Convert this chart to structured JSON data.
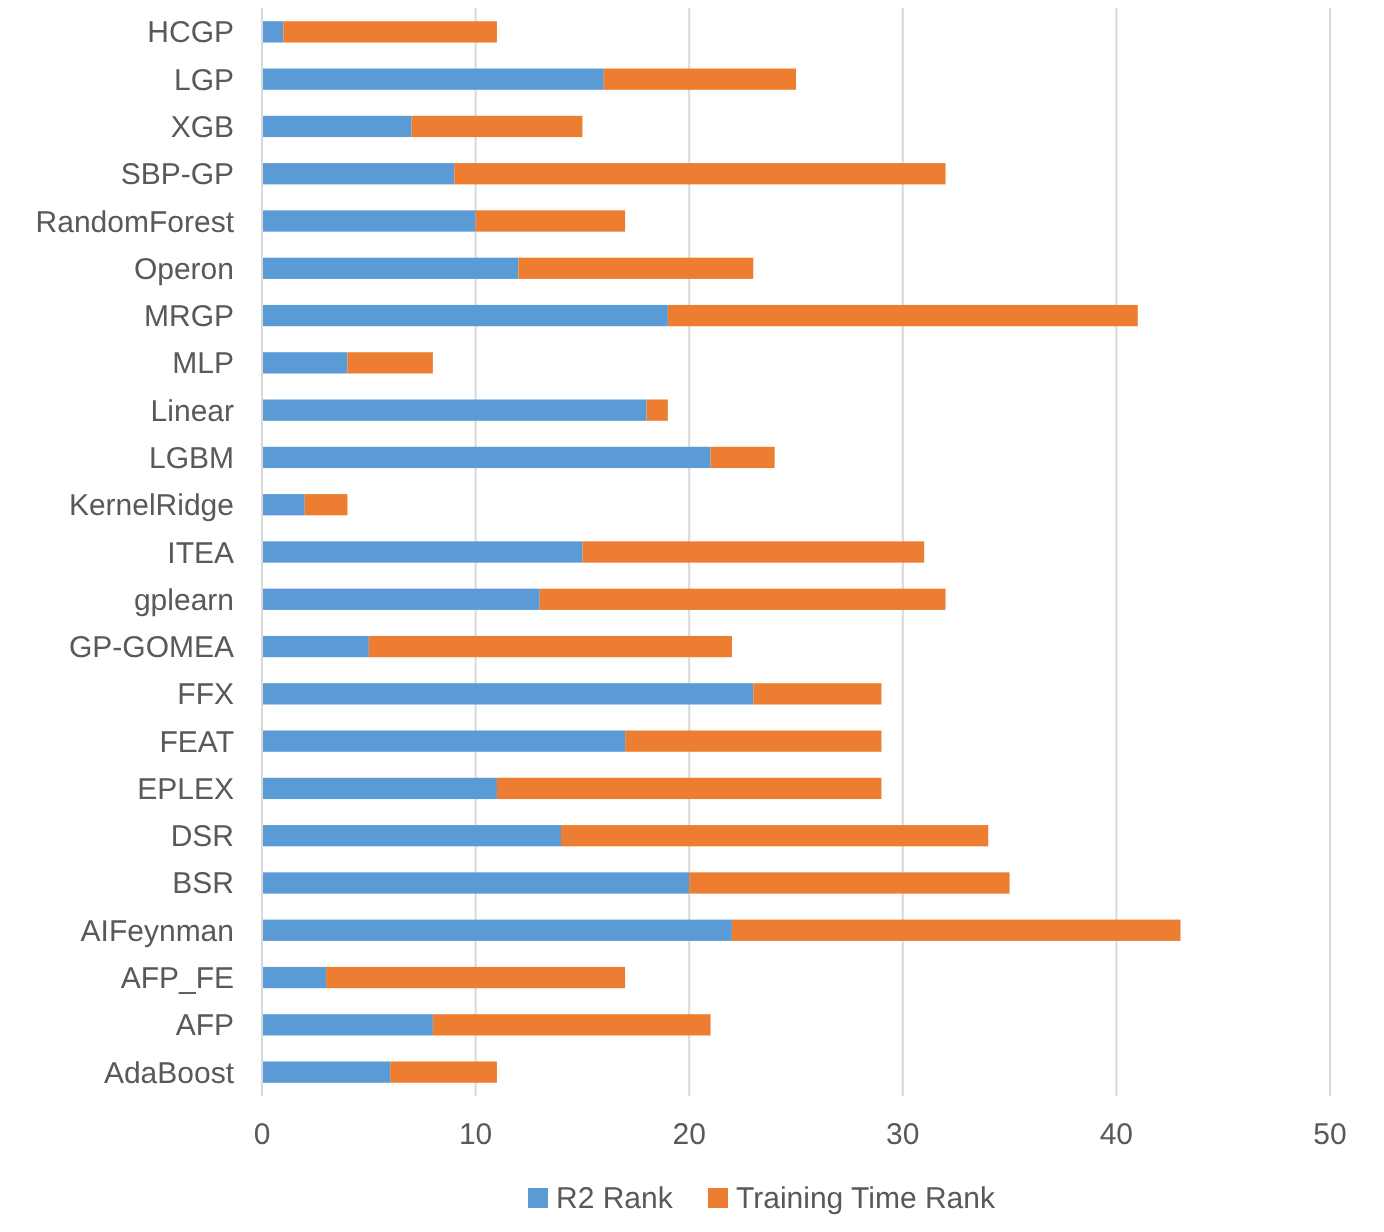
{
  "chart_data": {
    "type": "bar",
    "orientation": "horizontal",
    "stacked": true,
    "categories": [
      "HCGP",
      "LGP",
      "XGB",
      "SBP-GP",
      "RandomForest",
      "Operon",
      "MRGP",
      "MLP",
      "Linear",
      "LGBM",
      "KernelRidge",
      "ITEA",
      "gplearn",
      "GP-GOMEA",
      "FFX",
      "FEAT",
      "EPLEX",
      "DSR",
      "BSR",
      "AIFeynman",
      "AFP_FE",
      "AFP",
      "AdaBoost"
    ],
    "series": [
      {
        "name": "R2 Rank",
        "color": "#5b9bd5",
        "values": [
          1,
          16,
          7,
          9,
          10,
          12,
          19,
          4,
          18,
          21,
          2,
          15,
          13,
          5,
          23,
          17,
          11,
          14,
          20,
          22,
          3,
          8,
          6
        ]
      },
      {
        "name": "Training Time Rank",
        "color": "#ed7d31",
        "values": [
          10,
          9,
          8,
          23,
          7,
          11,
          22,
          4,
          1,
          3,
          2,
          16,
          19,
          17,
          6,
          12,
          18,
          20,
          15,
          21,
          14,
          13,
          5
        ]
      }
    ],
    "xlim": [
      0,
      50
    ],
    "xticks": [
      0,
      10,
      20,
      30,
      40,
      50
    ],
    "grid": "x",
    "legend": "bottom"
  }
}
